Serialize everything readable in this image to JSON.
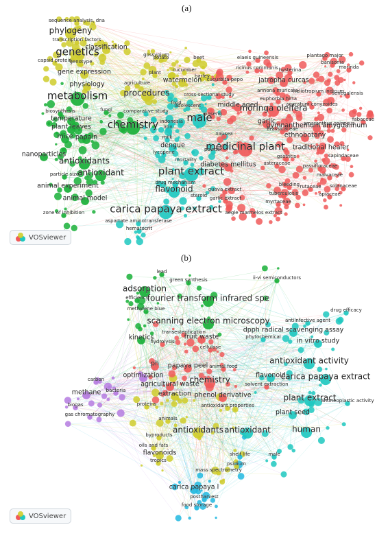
{
  "panel_a_label": "(a)",
  "panel_b_label": "(b)",
  "logo_text": "VOSviewer",
  "colors": {
    "red": "#f05a5a",
    "yellow": "#cfcc2b",
    "green": "#19b038",
    "cyan": "#1ec8c0",
    "purple": "#b57be0",
    "blue": "#22b8e0",
    "text": "#222222"
  },
  "panel_a": {
    "labels": [
      {
        "text": "sequence analysis, dna",
        "c": "yellow",
        "s": 1
      },
      {
        "text": "phylogeny",
        "c": "yellow",
        "s": 3
      },
      {
        "text": "transcription factors",
        "c": "yellow",
        "s": 1
      },
      {
        "text": "genetics",
        "c": "yellow",
        "s": 4
      },
      {
        "text": "classification",
        "c": "yellow",
        "s": 2
      },
      {
        "text": "capsid protein",
        "c": "yellow",
        "s": 1
      },
      {
        "text": "genotype",
        "c": "yellow",
        "s": 1
      },
      {
        "text": "gene expression",
        "c": "yellow",
        "s": 2
      },
      {
        "text": "potato",
        "c": "yellow",
        "s": 1
      },
      {
        "text": "gossypium",
        "c": "yellow",
        "s": 1
      },
      {
        "text": "beet",
        "c": "yellow",
        "s": 1
      },
      {
        "text": "plant",
        "c": "yellow",
        "s": 1
      },
      {
        "text": "physiology",
        "c": "yellow",
        "s": 2
      },
      {
        "text": "agriculture",
        "c": "yellow",
        "s": 1
      },
      {
        "text": "cucumber",
        "c": "yellow",
        "s": 1
      },
      {
        "text": "barley",
        "c": "yellow",
        "s": 1
      },
      {
        "text": "watermelon",
        "c": "yellow",
        "s": 2
      },
      {
        "text": "cucurbita pepo",
        "c": "red",
        "s": 1
      },
      {
        "text": "elaeis guineensis",
        "c": "red",
        "s": 1
      },
      {
        "text": "plantago major",
        "c": "red",
        "s": 1
      },
      {
        "text": "ricinus communis",
        "c": "red",
        "s": 1
      },
      {
        "text": "hysterina",
        "c": "red",
        "s": 1
      },
      {
        "text": "banisonia",
        "c": "red",
        "s": 1
      },
      {
        "text": "morinda",
        "c": "red",
        "s": 1
      },
      {
        "text": "jatropha curcas",
        "c": "red",
        "s": 2
      },
      {
        "text": "annona muricata",
        "c": "red",
        "s": 1
      },
      {
        "text": "euphorbia hirta",
        "c": "red",
        "s": 1
      },
      {
        "text": "moringa oleifera",
        "c": "red",
        "s": 3
      },
      {
        "text": "heliotropium indicum",
        "c": "red",
        "s": 1
      },
      {
        "text": "senegalensis",
        "c": "red",
        "s": 1
      },
      {
        "text": "metabolism",
        "c": "green",
        "s": 4
      },
      {
        "text": "procedures",
        "c": "yellow",
        "s": 3
      },
      {
        "text": "cross-sectional study",
        "c": "cyan",
        "s": 1
      },
      {
        "text": "food",
        "c": "cyan",
        "s": 1
      },
      {
        "text": "adolescent",
        "c": "cyan",
        "s": 1
      },
      {
        "text": "middle aged",
        "c": "red",
        "s": 2
      },
      {
        "text": "ageratum conyzoides",
        "c": "red",
        "s": 1
      },
      {
        "text": "biosynthesis",
        "c": "green",
        "s": 1
      },
      {
        "text": "fungi",
        "c": "green",
        "s": 1
      },
      {
        "text": "temperature",
        "c": "green",
        "s": 2
      },
      {
        "text": "comparative study",
        "c": "cyan",
        "s": 1
      },
      {
        "text": "chemistry",
        "c": "green",
        "s": 4
      },
      {
        "text": "male",
        "c": "cyan",
        "s": 4
      },
      {
        "text": "ginseng",
        "c": "red",
        "s": 1
      },
      {
        "text": "garlic",
        "c": "red",
        "s": 2
      },
      {
        "text": "brassicaceae",
        "c": "red",
        "s": 1
      },
      {
        "text": "amaranthus spinosus",
        "c": "red",
        "s": 1
      },
      {
        "text": "gymnanthemum amygdalinum",
        "c": "red",
        "s": 2
      },
      {
        "text": "fabaceae",
        "c": "red",
        "s": 1
      },
      {
        "text": "plant leaves",
        "c": "green",
        "s": 2
      },
      {
        "text": "indonesia",
        "c": "cyan",
        "s": 1
      },
      {
        "text": "iron",
        "c": "cyan",
        "s": 1
      },
      {
        "text": "milk",
        "c": "cyan",
        "s": 1
      },
      {
        "text": "nausea",
        "c": "red",
        "s": 1
      },
      {
        "text": "ethnobotany",
        "c": "red",
        "s": 2
      },
      {
        "text": "mice",
        "c": "green",
        "s": 2
      },
      {
        "text": "papain",
        "c": "green",
        "s": 2
      },
      {
        "text": "dengue",
        "c": "cyan",
        "s": 2
      },
      {
        "text": "medicinal plant",
        "c": "red",
        "s": 4
      },
      {
        "text": "traditional healer",
        "c": "red",
        "s": 2
      },
      {
        "text": "nanoparticles",
        "c": "green",
        "s": 2
      },
      {
        "text": "lycopene",
        "c": "cyan",
        "s": 1
      },
      {
        "text": "powder",
        "c": "cyan",
        "s": 1
      },
      {
        "text": "gastritis",
        "c": "red",
        "s": 1
      },
      {
        "text": "sapindaceae",
        "c": "red",
        "s": 1
      },
      {
        "text": "antioxidants",
        "c": "green",
        "s": 3
      },
      {
        "text": "mortality",
        "c": "cyan",
        "s": 1
      },
      {
        "text": "diabetes mellitus",
        "c": "red",
        "s": 2
      },
      {
        "text": "asteraceae",
        "c": "red",
        "s": 1
      },
      {
        "text": "passifloraceae",
        "c": "red",
        "s": 1
      },
      {
        "text": "particle size",
        "c": "green",
        "s": 1
      },
      {
        "text": "antioxidant",
        "c": "green",
        "s": 3
      },
      {
        "text": "plant extract",
        "c": "cyan",
        "s": 4
      },
      {
        "text": "malvaceae",
        "c": "red",
        "s": 1
      },
      {
        "text": "animal experiment",
        "c": "green",
        "s": 2
      },
      {
        "text": "drug mechanism",
        "c": "cyan",
        "s": 1
      },
      {
        "text": "bleeding",
        "c": "red",
        "s": 1
      },
      {
        "text": "rutaceae",
        "c": "red",
        "s": 1
      },
      {
        "text": "solanaceae",
        "c": "red",
        "s": 1
      },
      {
        "text": "flavonoid",
        "c": "cyan",
        "s": 3
      },
      {
        "text": "guava extract",
        "c": "red",
        "s": 1
      },
      {
        "text": "tuberculosis",
        "c": "red",
        "s": 1
      },
      {
        "text": "apiaceae",
        "c": "red",
        "s": 1
      },
      {
        "text": "animal model",
        "c": "green",
        "s": 2
      },
      {
        "text": "steroid",
        "c": "cyan",
        "s": 1
      },
      {
        "text": "garlic extract",
        "c": "red",
        "s": 1
      },
      {
        "text": "myrtaceae",
        "c": "red",
        "s": 1
      },
      {
        "text": "carica papaya extract",
        "c": "cyan",
        "s": 4
      },
      {
        "text": "zone of inhibition",
        "c": "green",
        "s": 1
      },
      {
        "text": "aegle marmelos extract",
        "c": "red",
        "s": 1
      },
      {
        "text": "aspartate aminotransferase",
        "c": "cyan",
        "s": 1
      },
      {
        "text": "hematocrit",
        "c": "cyan",
        "s": 1
      }
    ]
  },
  "panel_b": {
    "labels": [
      {
        "text": "lead",
        "c": "green",
        "s": 1
      },
      {
        "text": "green synthesis",
        "c": "green",
        "s": 1
      },
      {
        "text": "ii-vi semiconductors",
        "c": "green",
        "s": 1
      },
      {
        "text": "adsorption",
        "c": "green",
        "s": 3
      },
      {
        "text": "efficiency",
        "c": "green",
        "s": 1
      },
      {
        "text": "fourier transform infrared spe",
        "c": "green",
        "s": 3
      },
      {
        "text": "methylene blue",
        "c": "green",
        "s": 1
      },
      {
        "text": "drug efficacy",
        "c": "cyan",
        "s": 1
      },
      {
        "text": "antiinfective agent",
        "c": "cyan",
        "s": 1
      },
      {
        "text": "scanning electron microscopy",
        "c": "green",
        "s": 3
      },
      {
        "text": "dpph radical scavenging assay",
        "c": "cyan",
        "s": 2
      },
      {
        "text": "transesterification",
        "c": "red",
        "s": 1
      },
      {
        "text": "kinetics",
        "c": "green",
        "s": 2
      },
      {
        "text": "fruit waste",
        "c": "red",
        "s": 2
      },
      {
        "text": "phytochemical",
        "c": "cyan",
        "s": 1
      },
      {
        "text": "in vitro study",
        "c": "cyan",
        "s": 2
      },
      {
        "text": "hydrolysis",
        "c": "red",
        "s": 1
      },
      {
        "text": "cellulose",
        "c": "red",
        "s": 1
      },
      {
        "text": "antioxidant activity",
        "c": "cyan",
        "s": 3
      },
      {
        "text": "ph",
        "c": "red",
        "s": 2
      },
      {
        "text": "papaya peel",
        "c": "red",
        "s": 2
      },
      {
        "text": "animal food",
        "c": "red",
        "s": 1
      },
      {
        "text": "optimization",
        "c": "purple",
        "s": 2
      },
      {
        "text": "flavonoid",
        "c": "cyan",
        "s": 2
      },
      {
        "text": "carica papaya extract",
        "c": "cyan",
        "s": 3
      },
      {
        "text": "carbon",
        "c": "purple",
        "s": 1
      },
      {
        "text": "chemistry",
        "c": "red",
        "s": 3
      },
      {
        "text": "agricultural waste",
        "c": "red",
        "s": 2
      },
      {
        "text": "solvent extraction",
        "c": "red",
        "s": 1
      },
      {
        "text": "methane",
        "c": "purple",
        "s": 2
      },
      {
        "text": "bacteria",
        "c": "purple",
        "s": 1
      },
      {
        "text": "extraction",
        "c": "yellow",
        "s": 2
      },
      {
        "text": "phenol derivative",
        "c": "red",
        "s": 2
      },
      {
        "text": "plant extract",
        "c": "cyan",
        "s": 3
      },
      {
        "text": "antineoplastic activity",
        "c": "cyan",
        "s": 1
      },
      {
        "text": "proteins",
        "c": "yellow",
        "s": 1
      },
      {
        "text": "antioxidant properties",
        "c": "yellow",
        "s": 1
      },
      {
        "text": "plant seed",
        "c": "cyan",
        "s": 2
      },
      {
        "text": "biogas",
        "c": "purple",
        "s": 1
      },
      {
        "text": "animals",
        "c": "yellow",
        "s": 1
      },
      {
        "text": "gas chromatography",
        "c": "purple",
        "s": 1
      },
      {
        "text": "antioxidants",
        "c": "yellow",
        "s": 3
      },
      {
        "text": "antioxidant",
        "c": "cyan",
        "s": 3
      },
      {
        "text": "human",
        "c": "cyan",
        "s": 3
      },
      {
        "text": "byproducts",
        "c": "yellow",
        "s": 1
      },
      {
        "text": "oils and fats",
        "c": "yellow",
        "s": 1
      },
      {
        "text": "flavonoids",
        "c": "yellow",
        "s": 2
      },
      {
        "text": "tropics",
        "c": "yellow",
        "s": 1
      },
      {
        "text": "shelf life",
        "c": "blue",
        "s": 1
      },
      {
        "text": "male",
        "c": "cyan",
        "s": 1
      },
      {
        "text": "psidium",
        "c": "yellow",
        "s": 1
      },
      {
        "text": "mass spectrometry",
        "c": "yellow",
        "s": 1
      },
      {
        "text": "carica papaya l",
        "c": "blue",
        "s": 2
      },
      {
        "text": "postharvest",
        "c": "blue",
        "s": 1
      },
      {
        "text": "food storage",
        "c": "blue",
        "s": 1
      }
    ]
  }
}
